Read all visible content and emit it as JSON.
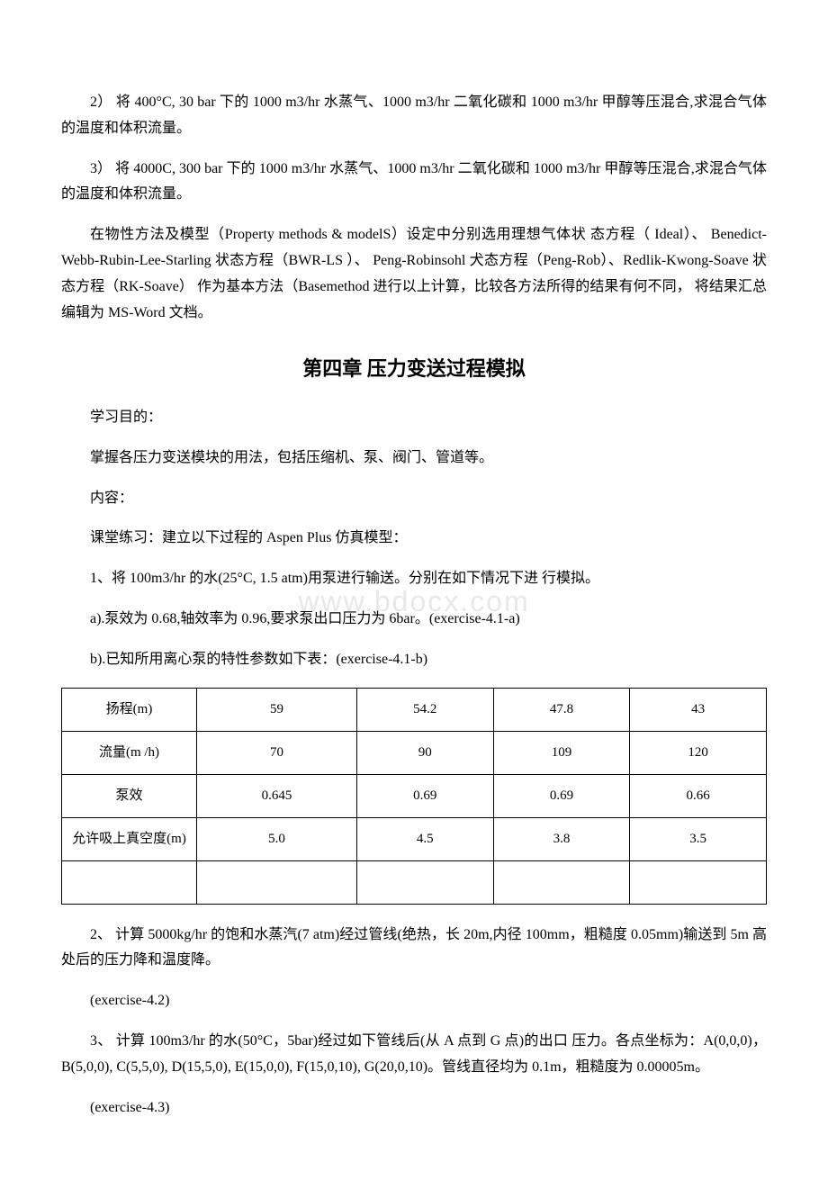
{
  "p1": "2）  将 400°C, 30 bar 下的 1000 m3/hr 水蒸气、1000 m3/hr 二氧化碳和 1000 m3/hr 甲醇等压混合,求混合气体的温度和体积流量。",
  "p2": "3）  将 4000C, 300 bar 下的 1000 m3/hr 水蒸气、1000 m3/hr 二氧化碳和 1000 m3/hr 甲醇等压混合,求混合气体的温度和体积流量。",
  "p3": "在物性方法及模型（Property methods & modelS）设定中分别选用理想气体状 态方程（ Ideal）、 Benedict-Webb-Rubin-Lee-Starling 状态方程（BWR-LS ）、 Peng-Robinsohl 犬态方程（Peng-Rob）、Redlik-Kwong-Soave 状态方程（RK-Soave） 作为基本方法（Basemethod 进行以上计算，比较各方法所得的结果有何不同， 将结果汇总编辑为 MS-Word 文档。",
  "chapterTitle": "第四章 压力变送过程模拟",
  "p4": "学习目的：",
  "p5": "掌握各压力变送模块的用法，包括压缩机、泵、阀门、管道等。",
  "p6": "内容：",
  "p7": "课堂练习：建立以下过程的 Aspen Plus 仿真模型：",
  "p8": "1、将 100m3/hr 的水(25°C, 1.5 atm)用泵进行输送。分别在如下情况下进 行模拟。",
  "p9": "a).泵效为 0.68,轴效率为 0.96,要求泵出口压力为 6bar。(exercise-4.1-a)",
  "p10": "b).已知所用离心泵的特性参数如下表：(exercise-4.1-b)",
  "table": {
    "rows": [
      {
        "header": "扬程(m)",
        "cells": [
          "59",
          "54.2",
          "47.8",
          "43"
        ]
      },
      {
        "header": "流量(m /h)",
        "cells": [
          "70",
          "90",
          "109",
          "120"
        ]
      },
      {
        "header": "泵效",
        "cells": [
          "0.645",
          "0.69",
          "0.69",
          "0.66"
        ]
      },
      {
        "header": "允许吸上真空度(m)",
        "cells": [
          "5.0",
          "4.5",
          "3.8",
          "3.5"
        ]
      },
      {
        "header": "",
        "cells": [
          "",
          "",
          "",
          ""
        ]
      }
    ]
  },
  "p11": "2、 计算 5000kg/hr 的饱和水蒸汽(7 atm)经过管线(绝热，长 20m,内径 100mm，粗糙度 0.05mm)输送到 5m 高处后的压力降和温度降。",
  "p12": "(exercise-4.2)",
  "p13": "3、 计算 100m3/hr 的水(50°C，5bar)经过如下管线后(从 A 点到 G 点)的出口 压力。各点坐标为：A(0,0,0)，B(5,0,0), C(5,5,0), D(15,5,0), E(15,0,0), F(15,0,10), G(20,0,10)。管线直径均为 0.1m，粗糙度为 0.00005m。",
  "p14": "(exercise-4.3)",
  "watermark": "www.bdocx.com"
}
